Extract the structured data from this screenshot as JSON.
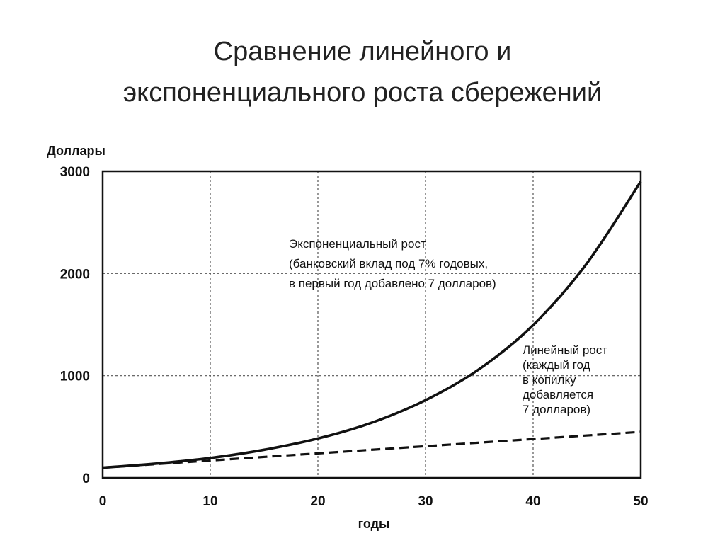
{
  "slide": {
    "title_line1": "Сравнение линейного и",
    "title_line2": "экспоненциального роста сбережений"
  },
  "chart_data": {
    "type": "line",
    "title": "",
    "ylabel": "Доллары",
    "xlabel": "годы",
    "xlim": [
      0,
      50
    ],
    "ylim": [
      0,
      3000
    ],
    "x_ticks": [
      "0",
      "10",
      "20",
      "30",
      "40",
      "50"
    ],
    "y_ticks": [
      "0",
      "1000",
      "2000",
      "3000"
    ],
    "grid": true,
    "series": [
      {
        "id": "exponential",
        "style": "solid",
        "x": [
          0,
          5,
          10,
          15,
          20,
          25,
          30,
          35,
          40,
          45,
          50
        ],
        "y": [
          100,
          140,
          195,
          275,
          385,
          540,
          760,
          1065,
          1495,
          2100,
          2900
        ]
      },
      {
        "id": "linear",
        "style": "dashed",
        "x": [
          0,
          10,
          20,
          30,
          40,
          50
        ],
        "y": [
          100,
          170,
          240,
          310,
          380,
          450
        ]
      }
    ],
    "annotations": {
      "exponential": [
        "Экспоненциальный рост",
        "(банковский вклад под 7% годовых,",
        "в первый год добавлено 7 долларов)"
      ],
      "linear": [
        "Линейный рост",
        "(каждый год",
        "в копилку",
        "добавляется",
        "7 долларов)"
      ]
    },
    "colors": {
      "line": "#111111",
      "grid": "#555555",
      "axis": "#111111"
    }
  }
}
